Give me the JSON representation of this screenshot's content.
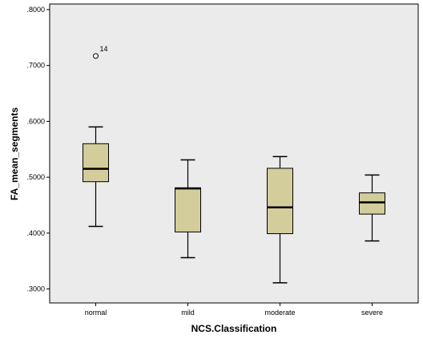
{
  "chart_data": {
    "type": "boxplot",
    "title": "",
    "xlabel": "NCS.Classification",
    "ylabel": "FA_mean_segments",
    "ylim": [
      0.275,
      0.81
    ],
    "y_ticks": [
      ".3000",
      ".4000",
      ".5000",
      ".6000",
      ".7000",
      ".8000"
    ],
    "y_tick_values": [
      0.3,
      0.4,
      0.5,
      0.6,
      0.7,
      0.8
    ],
    "grid": false,
    "legend": "none",
    "categories": [
      "normal",
      "mild",
      "moderate",
      "severe"
    ],
    "boxes": [
      {
        "category": "normal",
        "min": 0.412,
        "q1": 0.492,
        "median": 0.515,
        "q3": 0.56,
        "max": 0.59
      },
      {
        "category": "mild",
        "min": 0.356,
        "q1": 0.402,
        "median": 0.48,
        "q3": 0.481,
        "max": 0.531
      },
      {
        "category": "moderate",
        "min": 0.311,
        "q1": 0.399,
        "median": 0.446,
        "q3": 0.516,
        "max": 0.537
      },
      {
        "category": "severe",
        "min": 0.386,
        "q1": 0.434,
        "median": 0.455,
        "q3": 0.472,
        "max": 0.504
      }
    ],
    "outliers": [
      {
        "category": "normal",
        "value": 0.717,
        "label": "14"
      }
    ],
    "colors": {
      "box_fill": "#d3cd9c",
      "plot_background": "#ebebeb",
      "line": "#000000"
    }
  }
}
